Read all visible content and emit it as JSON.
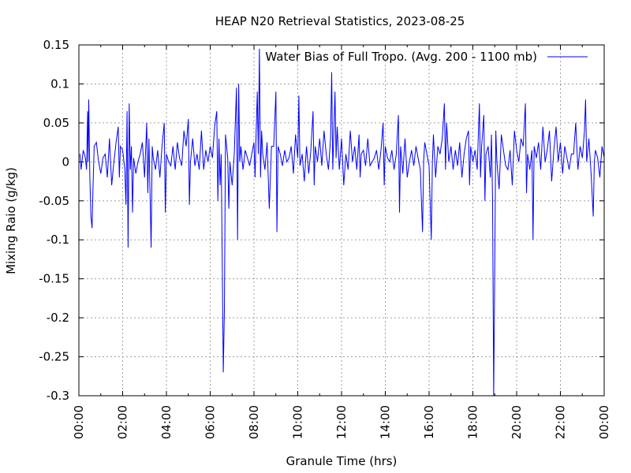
{
  "chart_data": {
    "type": "line",
    "title": "HEAP N20 Retrieval Statistics, 2023-08-25",
    "xlabel": "Granule Time (hrs)",
    "ylabel": "Mixing Raio (g/kg)",
    "xlim_hours": [
      0,
      24
    ],
    "ylim": [
      -0.3,
      0.15
    ],
    "x_ticks": [
      {
        "hour": 0,
        "label": "00:00"
      },
      {
        "hour": 2,
        "label": "02:00"
      },
      {
        "hour": 4,
        "label": "04:00"
      },
      {
        "hour": 6,
        "label": "06:00"
      },
      {
        "hour": 8,
        "label": "08:00"
      },
      {
        "hour": 10,
        "label": "10:00"
      },
      {
        "hour": 12,
        "label": "12:00"
      },
      {
        "hour": 14,
        "label": "14:00"
      },
      {
        "hour": 16,
        "label": "16:00"
      },
      {
        "hour": 18,
        "label": "18:00"
      },
      {
        "hour": 20,
        "label": "20:00"
      },
      {
        "hour": 22,
        "label": "22:00"
      },
      {
        "hour": 24,
        "label": "00:00"
      }
    ],
    "y_ticks": [
      {
        "value": 0.15,
        "label": "0.15"
      },
      {
        "value": 0.1,
        "label": "0.1"
      },
      {
        "value": 0.05,
        "label": "0.05"
      },
      {
        "value": 0,
        "label": "0"
      },
      {
        "value": -0.05,
        "label": "-0.05"
      },
      {
        "value": -0.1,
        "label": "-0.1"
      },
      {
        "value": -0.15,
        "label": "-0.15"
      },
      {
        "value": -0.2,
        "label": "-0.2"
      },
      {
        "value": -0.25,
        "label": "-0.25"
      },
      {
        "value": -0.3,
        "label": "-0.3"
      }
    ],
    "grid": true,
    "legend_position": "top-right",
    "series": [
      {
        "name": "Water Bias of Full Tropo. (Avg. 200 - 1100 mb)",
        "color": "#0000ff",
        "points": [
          [
            0.05,
            0.01
          ],
          [
            0.1,
            -0.01
          ],
          [
            0.2,
            0.015
          ],
          [
            0.3,
            0.005
          ],
          [
            0.35,
            -0.01
          ],
          [
            0.4,
            0.065
          ],
          [
            0.42,
            0.0
          ],
          [
            0.45,
            0.08
          ],
          [
            0.5,
            -0.02
          ],
          [
            0.55,
            -0.07
          ],
          [
            0.6,
            -0.085
          ],
          [
            0.65,
            -0.03
          ],
          [
            0.7,
            0.02
          ],
          [
            0.8,
            0.025
          ],
          [
            0.9,
            0.0
          ],
          [
            1.0,
            -0.015
          ],
          [
            1.1,
            0.005
          ],
          [
            1.2,
            0.01
          ],
          [
            1.3,
            -0.02
          ],
          [
            1.4,
            0.03
          ],
          [
            1.5,
            -0.03
          ],
          [
            1.6,
            0.0
          ],
          [
            1.7,
            0.025
          ],
          [
            1.8,
            0.045
          ],
          [
            1.85,
            -0.02
          ],
          [
            1.9,
            0.02
          ],
          [
            2.0,
            0.015
          ],
          [
            2.1,
            -0.01
          ],
          [
            2.15,
            -0.055
          ],
          [
            2.2,
            0.065
          ],
          [
            2.25,
            -0.11
          ],
          [
            2.3,
            0.075
          ],
          [
            2.35,
            -0.01
          ],
          [
            2.4,
            0.02
          ],
          [
            2.45,
            -0.065
          ],
          [
            2.5,
            0.005
          ],
          [
            2.6,
            -0.015
          ],
          [
            2.7,
            0.0
          ],
          [
            2.8,
            0.01
          ],
          [
            2.9,
            0.025
          ],
          [
            3.0,
            -0.02
          ],
          [
            3.1,
            0.05
          ],
          [
            3.15,
            -0.04
          ],
          [
            3.2,
            0.03
          ],
          [
            3.3,
            -0.11
          ],
          [
            3.35,
            0.02
          ],
          [
            3.4,
            0.005
          ],
          [
            3.5,
            -0.01
          ],
          [
            3.6,
            0.015
          ],
          [
            3.7,
            -0.02
          ],
          [
            3.8,
            0.02
          ],
          [
            3.9,
            0.05
          ],
          [
            3.95,
            -0.065
          ],
          [
            4.0,
            0.01
          ],
          [
            4.1,
            0.0
          ],
          [
            4.2,
            -0.005
          ],
          [
            4.3,
            0.02
          ],
          [
            4.4,
            -0.01
          ],
          [
            4.5,
            0.025
          ],
          [
            4.6,
            0.005
          ],
          [
            4.7,
            -0.005
          ],
          [
            4.8,
            0.04
          ],
          [
            4.9,
            0.02
          ],
          [
            5.0,
            0.055
          ],
          [
            5.05,
            -0.055
          ],
          [
            5.1,
            0.0
          ],
          [
            5.2,
            0.03
          ],
          [
            5.3,
            -0.005
          ],
          [
            5.4,
            0.01
          ],
          [
            5.5,
            -0.01
          ],
          [
            5.6,
            0.04
          ],
          [
            5.7,
            -0.01
          ],
          [
            5.8,
            0.015
          ],
          [
            5.9,
            0.0
          ],
          [
            6.0,
            0.02
          ],
          [
            6.1,
            0.005
          ],
          [
            6.2,
            0.045
          ],
          [
            6.3,
            0.065
          ],
          [
            6.35,
            -0.05
          ],
          [
            6.4,
            0.03
          ],
          [
            6.45,
            -0.03
          ],
          [
            6.5,
            0.01
          ],
          [
            6.55,
            -0.13
          ],
          [
            6.6,
            -0.27
          ],
          [
            6.65,
            -0.19
          ],
          [
            6.7,
            0.035
          ],
          [
            6.75,
            0.02
          ],
          [
            6.8,
            0.005
          ],
          [
            6.85,
            -0.06
          ],
          [
            6.9,
            0.0
          ],
          [
            7.0,
            -0.03
          ],
          [
            7.1,
            0.01
          ],
          [
            7.2,
            0.095
          ],
          [
            7.25,
            -0.1
          ],
          [
            7.3,
            0.1
          ],
          [
            7.35,
            0.0
          ],
          [
            7.4,
            0.02
          ],
          [
            7.5,
            -0.01
          ],
          [
            7.6,
            0.015
          ],
          [
            7.7,
            0.005
          ],
          [
            7.8,
            -0.005
          ],
          [
            7.9,
            0.01
          ],
          [
            8.0,
            0.025
          ],
          [
            8.05,
            -0.02
          ],
          [
            8.1,
            0.04
          ],
          [
            8.15,
            0.09
          ],
          [
            8.2,
            0.01
          ],
          [
            8.25,
            0.145
          ],
          [
            8.3,
            -0.02
          ],
          [
            8.35,
            0.04
          ],
          [
            8.4,
            0.01
          ],
          [
            8.5,
            -0.01
          ],
          [
            8.6,
            0.025
          ],
          [
            8.7,
            -0.06
          ],
          [
            8.8,
            0.02
          ],
          [
            8.9,
            0.02
          ],
          [
            9.0,
            0.09
          ],
          [
            9.05,
            -0.09
          ],
          [
            9.1,
            0.02
          ],
          [
            9.2,
            0.01
          ],
          [
            9.3,
            -0.005
          ],
          [
            9.4,
            0.015
          ],
          [
            9.5,
            0.0
          ],
          [
            9.6,
            0.005
          ],
          [
            9.7,
            0.02
          ],
          [
            9.8,
            -0.015
          ],
          [
            9.9,
            0.035
          ],
          [
            10.0,
            0.005
          ],
          [
            10.05,
            0.085
          ],
          [
            10.1,
            -0.005
          ],
          [
            10.2,
            0.01
          ],
          [
            10.3,
            -0.025
          ],
          [
            10.4,
            0.02
          ],
          [
            10.5,
            -0.015
          ],
          [
            10.6,
            0.015
          ],
          [
            10.7,
            0.065
          ],
          [
            10.75,
            -0.03
          ],
          [
            10.8,
            0.02
          ],
          [
            10.9,
            0.0
          ],
          [
            11.0,
            0.03
          ],
          [
            11.1,
            -0.005
          ],
          [
            11.2,
            0.04
          ],
          [
            11.3,
            0.01
          ],
          [
            11.4,
            -0.01
          ],
          [
            11.5,
            0.03
          ],
          [
            11.55,
            0.115
          ],
          [
            11.6,
            -0.01
          ],
          [
            11.7,
            0.09
          ],
          [
            11.75,
            0.005
          ],
          [
            11.8,
            0.045
          ],
          [
            11.9,
            -0.01
          ],
          [
            12.0,
            0.03
          ],
          [
            12.1,
            -0.03
          ],
          [
            12.2,
            0.01
          ],
          [
            12.3,
            -0.01
          ],
          [
            12.4,
            0.04
          ],
          [
            12.5,
            0.0
          ],
          [
            12.6,
            0.02
          ],
          [
            12.7,
            -0.01
          ],
          [
            12.8,
            0.035
          ],
          [
            12.85,
            -0.02
          ],
          [
            12.9,
            0.01
          ],
          [
            13.0,
            0.015
          ],
          [
            13.1,
            -0.005
          ],
          [
            13.2,
            0.03
          ],
          [
            13.3,
            -0.005
          ],
          [
            13.4,
            0.0
          ],
          [
            13.5,
            0.005
          ],
          [
            13.6,
            0.015
          ],
          [
            13.7,
            -0.01
          ],
          [
            13.8,
            0.015
          ],
          [
            13.9,
            0.05
          ],
          [
            13.95,
            -0.03
          ],
          [
            14.0,
            0.02
          ],
          [
            14.1,
            0.005
          ],
          [
            14.2,
            0.0
          ],
          [
            14.3,
            0.015
          ],
          [
            14.4,
            -0.01
          ],
          [
            14.5,
            0.01
          ],
          [
            14.6,
            0.06
          ],
          [
            14.65,
            -0.065
          ],
          [
            14.7,
            0.02
          ],
          [
            14.8,
            -0.015
          ],
          [
            14.9,
            0.03
          ],
          [
            15.0,
            -0.02
          ],
          [
            15.1,
            0.0
          ],
          [
            15.2,
            0.015
          ],
          [
            15.3,
            -0.005
          ],
          [
            15.4,
            0.02
          ],
          [
            15.5,
            0.005
          ],
          [
            15.6,
            -0.01
          ],
          [
            15.7,
            -0.09
          ],
          [
            15.75,
            0.0
          ],
          [
            15.8,
            0.025
          ],
          [
            15.9,
            0.01
          ],
          [
            16.0,
            -0.005
          ],
          [
            16.1,
            -0.1
          ],
          [
            16.15,
            0.0
          ],
          [
            16.2,
            0.035
          ],
          [
            16.3,
            -0.02
          ],
          [
            16.4,
            0.02
          ],
          [
            16.5,
            0.01
          ],
          [
            16.6,
            0.03
          ],
          [
            16.7,
            0.075
          ],
          [
            16.75,
            -0.01
          ],
          [
            16.8,
            0.05
          ],
          [
            16.9,
            0.0
          ],
          [
            17.0,
            0.02
          ],
          [
            17.1,
            -0.01
          ],
          [
            17.2,
            0.015
          ],
          [
            17.3,
            -0.005
          ],
          [
            17.4,
            0.025
          ],
          [
            17.5,
            -0.02
          ],
          [
            17.6,
            0.01
          ],
          [
            17.7,
            0.03
          ],
          [
            17.8,
            0.04
          ],
          [
            17.85,
            -0.03
          ],
          [
            17.9,
            0.02
          ],
          [
            18.0,
            0.0
          ],
          [
            18.1,
            0.015
          ],
          [
            18.2,
            -0.01
          ],
          [
            18.3,
            0.075
          ],
          [
            18.35,
            -0.02
          ],
          [
            18.4,
            0.02
          ],
          [
            18.5,
            0.06
          ],
          [
            18.55,
            -0.05
          ],
          [
            18.6,
            0.01
          ],
          [
            18.7,
            0.02
          ],
          [
            18.8,
            -0.02
          ],
          [
            18.85,
            0.035
          ],
          [
            18.9,
            -0.05
          ],
          [
            18.95,
            -0.3
          ],
          [
            19.0,
            -0.13
          ],
          [
            19.05,
            0.04
          ],
          [
            19.1,
            0.0
          ],
          [
            19.2,
            -0.035
          ],
          [
            19.3,
            0.035
          ],
          [
            19.4,
            0.015
          ],
          [
            19.5,
            -0.005
          ],
          [
            19.6,
            -0.01
          ],
          [
            19.7,
            0.015
          ],
          [
            19.8,
            -0.03
          ],
          [
            19.9,
            0.04
          ],
          [
            20.0,
            0.015
          ],
          [
            20.1,
            0.0
          ],
          [
            20.2,
            0.03
          ],
          [
            20.3,
            0.02
          ],
          [
            20.4,
            0.075
          ],
          [
            20.45,
            -0.04
          ],
          [
            20.5,
            0.01
          ],
          [
            20.6,
            -0.01
          ],
          [
            20.7,
            0.015
          ],
          [
            20.75,
            -0.1
          ],
          [
            20.8,
            0.02
          ],
          [
            20.9,
            0.005
          ],
          [
            21.0,
            0.025
          ],
          [
            21.1,
            -0.01
          ],
          [
            21.2,
            0.045
          ],
          [
            21.3,
            0.0
          ],
          [
            21.4,
            0.015
          ],
          [
            21.5,
            0.04
          ],
          [
            21.6,
            -0.025
          ],
          [
            21.7,
            0.015
          ],
          [
            21.8,
            0.045
          ],
          [
            21.9,
            0.0
          ],
          [
            22.0,
            0.025
          ],
          [
            22.1,
            -0.015
          ],
          [
            22.2,
            0.02
          ],
          [
            22.3,
            0.005
          ],
          [
            22.4,
            -0.01
          ],
          [
            22.5,
            0.01
          ],
          [
            22.6,
            0.01
          ],
          [
            22.7,
            0.05
          ],
          [
            22.8,
            -0.01
          ],
          [
            22.9,
            0.02
          ],
          [
            23.0,
            0.005
          ],
          [
            23.1,
            0.04
          ],
          [
            23.15,
            0.08
          ],
          [
            23.2,
            0.0
          ],
          [
            23.3,
            0.03
          ],
          [
            23.4,
            -0.015
          ],
          [
            23.5,
            -0.07
          ],
          [
            23.55,
            0.0
          ],
          [
            23.6,
            0.015
          ],
          [
            23.7,
            0.005
          ],
          [
            23.8,
            -0.02
          ],
          [
            23.9,
            0.02
          ],
          [
            24.0,
            0.005
          ]
        ]
      }
    ]
  }
}
